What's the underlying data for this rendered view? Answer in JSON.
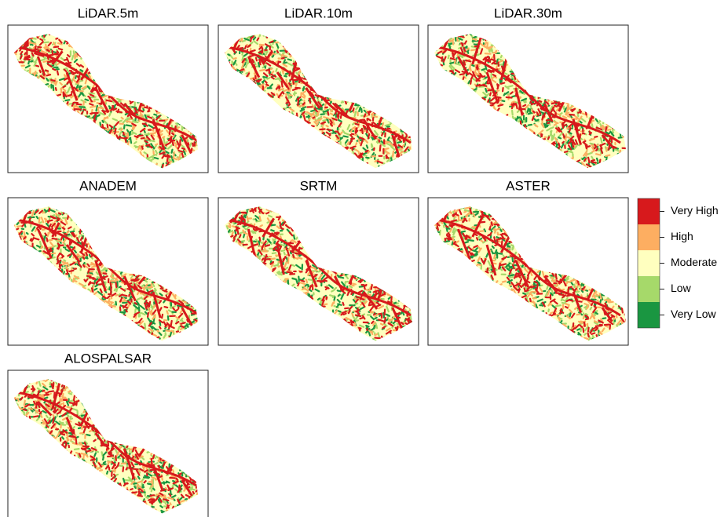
{
  "panels": [
    {
      "title": "LiDAR.5m"
    },
    {
      "title": "LiDAR.10m"
    },
    {
      "title": "LiDAR.30m"
    },
    {
      "title": "ANADEM"
    },
    {
      "title": "SRTM"
    },
    {
      "title": "ASTER"
    },
    {
      "title": "ALOSPALSAR"
    }
  ],
  "legend": {
    "items": [
      {
        "label": "Very High",
        "color": "#d7191c"
      },
      {
        "label": "High",
        "color": "#fdae61"
      },
      {
        "label": "Moderate",
        "color": "#ffffbf"
      },
      {
        "label": "Low",
        "color": "#a6d96a"
      },
      {
        "label": "Very Low",
        "color": "#1a9641"
      }
    ]
  }
}
